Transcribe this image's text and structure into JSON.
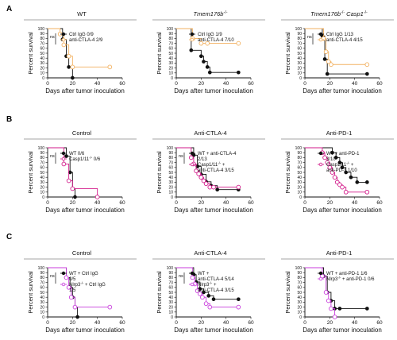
{
  "panels": [
    {
      "letter": "A"
    },
    {
      "letter": "B"
    },
    {
      "letter": "C"
    }
  ],
  "axis_common": {
    "ylabel": "Percent survival",
    "xlabel": "Days after tumor inoculation",
    "xticks": [
      0,
      20,
      40,
      60
    ],
    "yticks": [
      0,
      10,
      20,
      30,
      40,
      50,
      60,
      70,
      80,
      90,
      100
    ]
  },
  "colors": {
    "black": "#111111",
    "orange": "#f2b160",
    "pink": "#d21a8a",
    "magenta": "#c83cdc"
  },
  "chart_data": [
    {
      "type": "line",
      "panel": "A",
      "title": "WT",
      "title_italic": false,
      "xlim": [
        0,
        60
      ],
      "ylim": [
        0,
        100
      ],
      "ns": "ns",
      "legend_lines": [
        {
          "text": "Ctrl IgG 0/9",
          "color": "#111111"
        },
        {
          "text": "anti-CTLA-4 2/9",
          "color": "#f2b160"
        }
      ],
      "series": [
        {
          "name": "Ctrl IgG 0/9",
          "color": "#111111",
          "marker": "filled",
          "x": [
            0,
            12,
            15,
            17,
            20
          ],
          "y": [
            100,
            78,
            44,
            22,
            0
          ]
        },
        {
          "name": "anti-CTLA-4 2/9",
          "color": "#f2b160",
          "marker": "open",
          "x": [
            0,
            10,
            13,
            17,
            20,
            50
          ],
          "y": [
            100,
            89,
            67,
            44,
            22,
            22
          ]
        }
      ]
    },
    {
      "type": "line",
      "panel": "A",
      "title": "Tmem176b-/-",
      "title_italic": true,
      "xlim": [
        0,
        60
      ],
      "ylim": [
        0,
        100
      ],
      "ns": "",
      "legend_lines": [
        {
          "text": "Ctrl IgG 1/9",
          "color": "#111111"
        },
        {
          "text": "anti-CTLA-4 7/10",
          "color": "#f2b160"
        }
      ],
      "series": [
        {
          "name": "Ctrl IgG 1/9",
          "color": "#111111",
          "marker": "filled",
          "x": [
            0,
            12,
            20,
            22,
            25,
            27,
            50
          ],
          "y": [
            100,
            56,
            44,
            33,
            22,
            11,
            11
          ]
        },
        {
          "name": "anti-CTLA-4 7/10",
          "color": "#f2b160",
          "marker": "open",
          "x": [
            0,
            13,
            20,
            25,
            50
          ],
          "y": [
            100,
            80,
            70,
            70,
            70
          ]
        }
      ]
    },
    {
      "type": "line",
      "panel": "A",
      "title": "Tmem176b-/- Casp1-/-",
      "title_italic": true,
      "xlim": [
        0,
        60
      ],
      "ylim": [
        0,
        100
      ],
      "ns": "ns",
      "legend_lines": [
        {
          "text": "Ctrl IgG 1/13",
          "color": "#111111"
        },
        {
          "text": "anti-CTLA-4 4/15",
          "color": "#f2b160"
        }
      ],
      "series": [
        {
          "name": "Ctrl IgG 1/13",
          "color": "#111111",
          "marker": "filled",
          "x": [
            0,
            14,
            16,
            18,
            50
          ],
          "y": [
            100,
            85,
            38,
            8,
            8
          ]
        },
        {
          "name": "anti-CTLA-4 4/15",
          "color": "#f2b160",
          "marker": "open",
          "x": [
            0,
            15,
            17,
            19,
            21,
            50
          ],
          "y": [
            100,
            80,
            53,
            33,
            27,
            27
          ]
        }
      ]
    },
    {
      "type": "line",
      "panel": "B",
      "title": "Control",
      "title_italic": false,
      "xlim": [
        0,
        60
      ],
      "ylim": [
        0,
        100
      ],
      "ns": "ns",
      "legend_lines": [
        {
          "text": "WT 0/6",
          "color": "#111111"
        },
        {
          "text": "Casp1/11-/- 0/6",
          "color": "#d21a8a"
        }
      ],
      "series": [
        {
          "name": "WT 0/6",
          "color": "#111111",
          "marker": "filled",
          "x": [
            0,
            15,
            18,
            20,
            22
          ],
          "y": [
            100,
            83,
            50,
            17,
            0
          ]
        },
        {
          "name": "Casp1/11-/- 0/6",
          "color": "#d21a8a",
          "marker": "open",
          "x": [
            0,
            13,
            17,
            20,
            40
          ],
          "y": [
            100,
            67,
            33,
            17,
            0
          ]
        }
      ]
    },
    {
      "type": "line",
      "panel": "B",
      "title": "Anti-CTLA-4",
      "title_italic": false,
      "xlim": [
        0,
        60
      ],
      "ylim": [
        0,
        100
      ],
      "ns": "ns",
      "legend_lines": [
        {
          "text": "WT + anti-CTLA-4",
          "color": "#111111"
        },
        {
          "text": "2/13",
          "color": "#111111"
        },
        {
          "text": "Casp1/11-/- +",
          "color": "#d21a8a"
        },
        {
          "text": "anti-CTLA-4 3/15",
          "color": "#d21a8a"
        }
      ],
      "series": [
        {
          "name": "WT + anti-CTLA-4 2/13",
          "color": "#111111",
          "marker": "filled",
          "x": [
            0,
            14,
            17,
            20,
            24,
            28,
            33,
            50
          ],
          "y": [
            100,
            85,
            62,
            46,
            31,
            23,
            15,
            15
          ]
        },
        {
          "name": "Casp1/11-/- + anti-CTLA-4 3/15",
          "color": "#d21a8a",
          "marker": "open",
          "x": [
            0,
            12,
            14,
            16,
            18,
            20,
            22,
            24,
            27,
            30,
            50
          ],
          "y": [
            100,
            80,
            67,
            53,
            47,
            40,
            33,
            27,
            20,
            20,
            20
          ]
        }
      ]
    },
    {
      "type": "line",
      "panel": "B",
      "title": "Anti-PD-1",
      "title_italic": false,
      "xlim": [
        0,
        60
      ],
      "ylim": [
        0,
        100
      ],
      "ns": "",
      "legend_lines": [
        {
          "text": "WT + anti-PD-1",
          "color": "#111111"
        },
        {
          "text": "3/10",
          "color": "#111111"
        },
        {
          "text": "Casp1/11-/- +",
          "color": "#d21a8a"
        },
        {
          "text": "anti-PD-1 1/10",
          "color": "#d21a8a"
        }
      ],
      "series": [
        {
          "name": "WT + anti-PD-1 3/10",
          "color": "#111111",
          "marker": "filled",
          "x": [
            0,
            22,
            25,
            28,
            30,
            33,
            37,
            42,
            50
          ],
          "y": [
            100,
            90,
            80,
            70,
            60,
            50,
            40,
            30,
            30
          ]
        },
        {
          "name": "Casp1/11-/- + anti-PD-1 1/10",
          "color": "#d21a8a",
          "marker": "open",
          "x": [
            0,
            14,
            16,
            18,
            20,
            22,
            24,
            26,
            28,
            30,
            33,
            50
          ],
          "y": [
            100,
            90,
            80,
            70,
            60,
            50,
            40,
            30,
            25,
            20,
            10,
            10
          ]
        }
      ]
    },
    {
      "type": "line",
      "panel": "C",
      "title": "Control",
      "title_italic": false,
      "xlim": [
        0,
        60
      ],
      "ylim": [
        0,
        100
      ],
      "ns": "ns",
      "legend_lines": [
        {
          "text": "WT + Ctrl IgG",
          "color": "#111111"
        },
        {
          "text": "0/5",
          "color": "#111111"
        },
        {
          "text": "Nlrp3-/- + Ctrl IgG",
          "color": "#c83cdc"
        },
        {
          "text": "1/5",
          "color": "#c83cdc"
        }
      ],
      "series": [
        {
          "name": "WT + Ctrl IgG 0/5",
          "color": "#111111",
          "marker": "filled",
          "x": [
            0,
            15,
            18,
            20,
            22,
            24
          ],
          "y": [
            100,
            80,
            60,
            40,
            20,
            0
          ]
        },
        {
          "name": "Nlrp3-/- + Ctrl IgG 1/5",
          "color": "#c83cdc",
          "marker": "open",
          "x": [
            0,
            15,
            17,
            19,
            22,
            50
          ],
          "y": [
            100,
            80,
            60,
            40,
            20,
            20
          ]
        }
      ]
    },
    {
      "type": "line",
      "panel": "C",
      "title": "Anti-CTLA-4",
      "title_italic": false,
      "xlim": [
        0,
        60
      ],
      "ylim": [
        0,
        100
      ],
      "ns": "ns",
      "legend_lines": [
        {
          "text": "WT +",
          "color": "#111111"
        },
        {
          "text": "anti-CTLA-4 5/14",
          "color": "#111111"
        },
        {
          "text": "Nlrp3-/- +",
          "color": "#c83cdc"
        },
        {
          "text": "anti-CTLA-4 3/15",
          "color": "#c83cdc"
        }
      ],
      "series": [
        {
          "name": "WT + anti-CTLA-4 5/14",
          "color": "#111111",
          "marker": "filled",
          "x": [
            0,
            14,
            16,
            19,
            22,
            26,
            30,
            50
          ],
          "y": [
            100,
            86,
            71,
            57,
            50,
            43,
            36,
            36
          ]
        },
        {
          "name": "Nlrp3-/- + anti-CTLA-4 3/15",
          "color": "#c83cdc",
          "marker": "open",
          "x": [
            0,
            13,
            15,
            17,
            19,
            21,
            24,
            27,
            50
          ],
          "y": [
            100,
            80,
            67,
            53,
            47,
            40,
            27,
            20,
            20
          ]
        }
      ]
    },
    {
      "type": "line",
      "panel": "C",
      "title": "Anti-PD-1",
      "title_italic": false,
      "xlim": [
        0,
        60
      ],
      "ylim": [
        0,
        100
      ],
      "ns": "",
      "legend_lines": [
        {
          "text": "WT + anti-PD-1 1/6",
          "color": "#111111"
        },
        {
          "text": "Nlrp3-/- + anti-PD-1 0/6",
          "color": "#c83cdc"
        }
      ],
      "series": [
        {
          "name": "WT + anti-PD-1 1/6",
          "color": "#111111",
          "marker": "filled",
          "x": [
            0,
            15,
            18,
            21,
            24,
            28,
            50
          ],
          "y": [
            100,
            83,
            50,
            33,
            17,
            17,
            17
          ]
        },
        {
          "name": "Nlrp3-/- + anti-PD-1 0/6",
          "color": "#c83cdc",
          "marker": "open",
          "x": [
            0,
            14,
            17,
            19,
            21,
            24
          ],
          "y": [
            100,
            83,
            50,
            33,
            17,
            0
          ]
        }
      ]
    }
  ]
}
